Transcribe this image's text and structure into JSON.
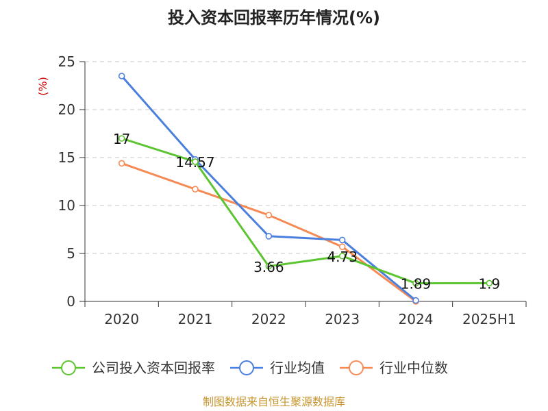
{
  "chart_data": {
    "type": "line",
    "title": "投入资本回报率历年情况(%)",
    "ylabel": "(%)",
    "xlabel": "",
    "categories": [
      "2020",
      "2021",
      "2022",
      "2023",
      "2024",
      "2025H1"
    ],
    "ylim": [
      0,
      25
    ],
    "yticks": [
      0,
      5,
      10,
      15,
      20,
      25
    ],
    "grid": true,
    "legend_position": "bottom",
    "series": [
      {
        "name": "公司投入资本回报率",
        "color": "#5cc430",
        "values": [
          17,
          14.57,
          3.66,
          4.73,
          1.89,
          1.9
        ],
        "labels": [
          "17",
          "14.57",
          "3.66",
          "4.73",
          "1.89",
          "1.9"
        ]
      },
      {
        "name": "行业均值",
        "color": "#4a7fde",
        "values": [
          23.5,
          14.8,
          6.8,
          6.4,
          0.1,
          null
        ]
      },
      {
        "name": "行业中位数",
        "color": "#f68a55",
        "values": [
          14.4,
          11.7,
          9.0,
          5.7,
          0.0,
          null
        ]
      }
    ]
  },
  "footer": {
    "source": "制图数据来自恒生聚源数据库"
  }
}
